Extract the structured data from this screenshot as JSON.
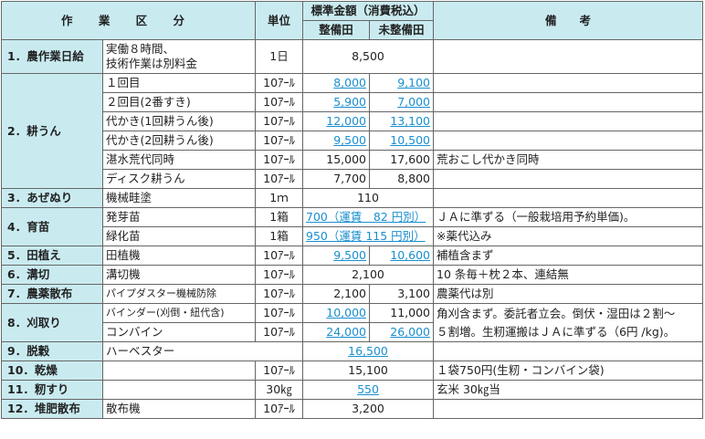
{
  "header": {
    "work_category": "作 業 区 分",
    "unit": "単位",
    "standard_amount": "標準金額（消費税込）",
    "seibi": "整備田",
    "miseibi": "未整備田",
    "remarks": "備　　考"
  },
  "rows": {
    "r1": {
      "cat": "1．農作業日給",
      "item": "実働８時間、\n技術作業は別料金",
      "unit": "1日",
      "amount": "8,500",
      "note": ""
    },
    "r2": {
      "cat": "2．耕うん",
      "items": [
        {
          "item": "１回目",
          "unit": "10ｱｰﾙ",
          "seibi": "8,000",
          "miseibi": "9,100",
          "note": ""
        },
        {
          "item": "２回目(2番すき)",
          "unit": "10ｱｰﾙ",
          "seibi": "5,900",
          "miseibi": "7,000",
          "note": ""
        },
        {
          "item": "代かき(1回耕うん後)",
          "unit": "10ｱｰﾙ",
          "seibi": "12,000",
          "miseibi": "13,100",
          "note": ""
        },
        {
          "item": "代かき(2回耕うん後)",
          "unit": "10ｱｰﾙ",
          "seibi": "9,500",
          "miseibi": "10,500",
          "note": ""
        },
        {
          "item": "湛水荒代同時",
          "unit": "10ｱｰﾙ",
          "seibi": "15,000",
          "miseibi": "17,600",
          "note": "荒おこし代かき同時"
        },
        {
          "item": "ディスク耕うん",
          "unit": "10ｱｰﾙ",
          "seibi": "7,700",
          "miseibi": "8,800",
          "note": ""
        }
      ]
    },
    "r3": {
      "cat": "3．あぜぬり",
      "item": "機械畦塗",
      "unit": "1ｍ",
      "amount": "110",
      "note": ""
    },
    "r4": {
      "cat": "4．育苗",
      "items": [
        {
          "item": "発芽苗",
          "unit": "1箱",
          "amount": "700（運賃　82 円別）",
          "note": "ＪＡに準ずる（一般栽培用予約単価)。"
        },
        {
          "item": "緑化苗",
          "unit": "1箱",
          "amount": "950（運賃 115 円別）",
          "note": "※薬代込み"
        }
      ]
    },
    "r5": {
      "cat": "5．田植え",
      "item": "田植機",
      "unit": "10ｱｰﾙ",
      "seibi": "9,500",
      "miseibi": "10,600",
      "note": "補植含まず"
    },
    "r6": {
      "cat": "6．溝切",
      "item": "溝切機",
      "unit": "10ｱｰﾙ",
      "amount": "2,100",
      "note": "10 条毎＋枕２本、連結無"
    },
    "r7": {
      "cat": "7．農薬散布",
      "item": "パイプダスター機械防除",
      "unit": "10ｱｰﾙ",
      "seibi": "2,100",
      "miseibi": "3,100",
      "note": "農薬代は別"
    },
    "r8": {
      "cat": "8．刈取り",
      "items": [
        {
          "item": "バインダー(刈倒・紐代含)",
          "unit": "10ｱｰﾙ",
          "seibi": "10,000",
          "miseibi": "11,000"
        },
        {
          "item": "コンバイン",
          "unit": "10ｱｰﾙ",
          "seibi": "24,000",
          "miseibi": "26,000"
        }
      ],
      "note_line1": "角刈含まず。委託者立会。倒伏・湿田は２割〜",
      "note_line2": "５割増。生籾運搬はＪＡに準ずる（6円 /kg)。"
    },
    "r9": {
      "cat": "9．脱穀",
      "item": "ハーベスター",
      "unit": "",
      "amount": "16,500",
      "note": ""
    },
    "r10": {
      "cat": "10．乾燥",
      "item": "",
      "unit": "10ｱｰﾙ",
      "amount": "15,100",
      "note": "１袋750円(生籾・コンバイン袋)"
    },
    "r11": {
      "cat": "11．籾すり",
      "item": "",
      "unit": "30㎏",
      "amount": "550",
      "note": "玄米 30㎏当"
    },
    "r12": {
      "cat": "12．堆肥散布",
      "item": "散布機",
      "unit": "10ｱｰﾙ",
      "amount": "3,200",
      "note": ""
    }
  }
}
